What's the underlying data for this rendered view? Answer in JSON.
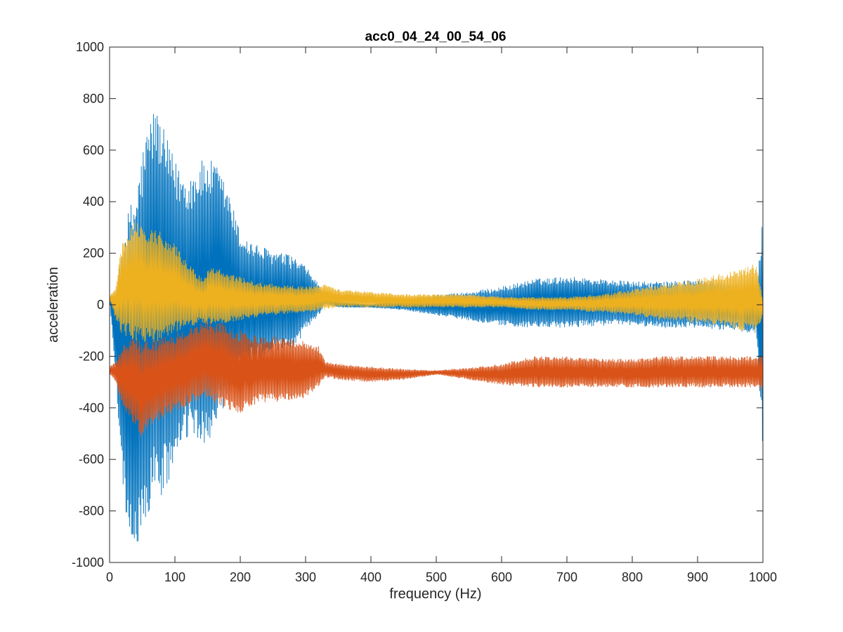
{
  "chart_data": {
    "type": "line",
    "title": "acc0_04_24_00_54_06",
    "xlabel": "frequency (Hz)",
    "ylabel": "acceleration",
    "xlim": [
      0,
      1000
    ],
    "ylim": [
      -1000,
      1000
    ],
    "x_ticks": [
      0,
      100,
      200,
      300,
      400,
      500,
      600,
      700,
      800,
      900,
      1000
    ],
    "y_ticks": [
      -1000,
      -800,
      -600,
      -400,
      -200,
      0,
      200,
      400,
      600,
      800,
      1000
    ],
    "x_tick_labels": [
      "0",
      "100",
      "200",
      "300",
      "400",
      "500",
      "600",
      "700",
      "800",
      "900",
      "1000"
    ],
    "y_tick_labels": [
      "-1000",
      "-800",
      "-600",
      "-400",
      "-200",
      "0",
      "200",
      "400",
      "600",
      "800",
      "1000"
    ],
    "grid": false,
    "legend": "none",
    "series": [
      {
        "color": "#0072BD",
        "envelope_x": [
          0,
          10,
          20,
          30,
          40,
          50,
          60,
          70,
          80,
          100,
          120,
          140,
          160,
          180,
          200,
          220,
          250,
          280,
          300,
          320,
          330,
          350,
          400,
          450,
          500,
          550,
          600,
          650,
          700,
          750,
          800,
          850,
          900,
          950,
          990,
          1000
        ],
        "envelope_upper": [
          30,
          60,
          250,
          380,
          450,
          600,
          720,
          780,
          700,
          560,
          500,
          560,
          560,
          460,
          280,
          240,
          210,
          190,
          150,
          80,
          30,
          10,
          0,
          20,
          40,
          50,
          70,
          100,
          110,
          100,
          90,
          90,
          100,
          80,
          60,
          380
        ],
        "envelope_lower": [
          20,
          -300,
          -700,
          -920,
          -960,
          -880,
          -820,
          -720,
          -760,
          -630,
          -520,
          -560,
          -500,
          -400,
          -260,
          -220,
          -190,
          -180,
          -100,
          -40,
          0,
          -10,
          -10,
          -20,
          -40,
          -60,
          -80,
          -90,
          -90,
          -80,
          -80,
          -90,
          -90,
          -100,
          -110,
          -560
        ]
      },
      {
        "color": "#D95319",
        "envelope_x": [
          0,
          10,
          20,
          40,
          50,
          60,
          80,
          100,
          130,
          150,
          170,
          200,
          230,
          260,
          300,
          320,
          330,
          350,
          400,
          450,
          500,
          550,
          600,
          650,
          700,
          750,
          800,
          850,
          900,
          950,
          990,
          1000
        ],
        "envelope_upper": [
          -240,
          -220,
          -160,
          -120,
          -150,
          -140,
          -130,
          -110,
          -80,
          -60,
          -70,
          -100,
          -120,
          -120,
          -140,
          -160,
          -220,
          -230,
          -240,
          -250,
          -255,
          -245,
          -230,
          -200,
          -200,
          -210,
          -210,
          -200,
          -200,
          -200,
          -200,
          -200
        ],
        "envelope_lower": [
          -270,
          -300,
          -400,
          -480,
          -520,
          -480,
          -440,
          -420,
          -380,
          -360,
          -400,
          -420,
          -380,
          -380,
          -360,
          -320,
          -280,
          -290,
          -300,
          -290,
          -270,
          -290,
          -310,
          -320,
          -320,
          -320,
          -320,
          -320,
          -320,
          -320,
          -320,
          -330
        ]
      },
      {
        "color": "#EDB120",
        "envelope_x": [
          0,
          10,
          20,
          40,
          60,
          80,
          100,
          120,
          140,
          160,
          180,
          200,
          220,
          250,
          300,
          330,
          350,
          400,
          450,
          500,
          550,
          600,
          650,
          700,
          750,
          800,
          850,
          900,
          950,
          990,
          1000
        ],
        "envelope_upper": [
          30,
          80,
          260,
          330,
          300,
          280,
          240,
          160,
          110,
          150,
          120,
          110,
          90,
          80,
          70,
          80,
          60,
          50,
          40,
          40,
          40,
          30,
          30,
          30,
          40,
          60,
          80,
          100,
          130,
          160,
          20
        ],
        "envelope_lower": [
          20,
          -60,
          -120,
          -140,
          -150,
          -150,
          -110,
          -90,
          -70,
          -80,
          -70,
          -60,
          -50,
          -40,
          -30,
          -20,
          -10,
          -10,
          -10,
          -10,
          -10,
          -10,
          -20,
          -20,
          -30,
          -40,
          -60,
          -70,
          -90,
          -110,
          -40
        ]
      }
    ]
  }
}
